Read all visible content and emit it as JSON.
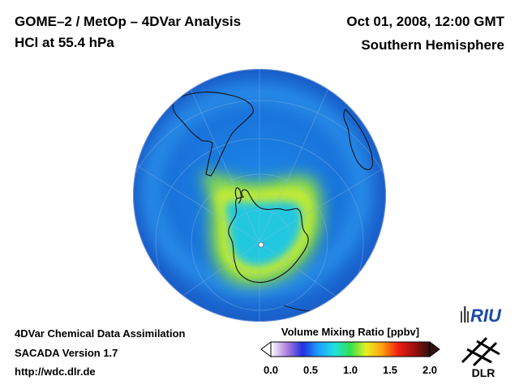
{
  "header": {
    "title_left_1": "GOME–2 / MetOp – 4DVar Analysis",
    "title_left_2": "HCl at 55.4 hPa",
    "title_right_1": "Oct 01, 2008, 12:00 GMT",
    "title_right_2": "Southern Hemisphere"
  },
  "footer": {
    "line1": "4DVar Chemical Data Assimilation",
    "line2": "SACADA Version 1.7",
    "line3": "http://wdc.dlr.de"
  },
  "colorbar": {
    "title": "Volume Mixing Ratio [ppbv]",
    "ticks": [
      "0.0",
      "0.5",
      "1.0",
      "1.5",
      "2.0"
    ],
    "min": 0.0,
    "max": 2.0,
    "colors": [
      "#ffffff",
      "#b080e0",
      "#2030e0",
      "#1ea0ff",
      "#20e0e0",
      "#30e050",
      "#e8f020",
      "#ffa010",
      "#f02010",
      "#a01010",
      "#301010"
    ]
  },
  "map": {
    "projection": "orthographic, south polar view",
    "ocean_color": "#1e78e0",
    "vortex_color": "#20d0d8",
    "ring_color": "#a8e830"
  },
  "logos": {
    "riu_label": "RIU",
    "dlr_label": "DLR"
  }
}
